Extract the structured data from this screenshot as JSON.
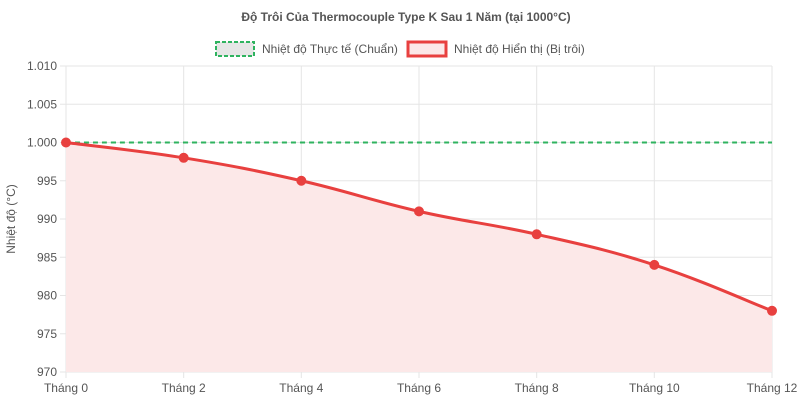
{
  "chart_data": {
    "type": "line",
    "title": "Độ Trôi Của Thermocouple Type K Sau 1 Năm (tại 1000°C)",
    "xlabel": "",
    "ylabel": "Nhiệt độ (°C)",
    "categories": [
      "Tháng 0",
      "Tháng 2",
      "Tháng 4",
      "Tháng 6",
      "Tháng 8",
      "Tháng 10",
      "Tháng 12"
    ],
    "ylim": [
      970,
      1010
    ],
    "yticks": [
      "1.010",
      "1.005",
      "1.000",
      "995",
      "990",
      "985",
      "980",
      "975",
      "970"
    ],
    "ytick_values": [
      1010,
      1005,
      1000,
      995,
      990,
      985,
      980,
      975,
      970
    ],
    "grid": true,
    "legend_position": "top",
    "series": [
      {
        "name": "Nhiệt độ Thực tế (Chuẩn)",
        "values": [
          1000,
          1000,
          1000,
          1000,
          1000,
          1000,
          1000
        ],
        "color": "#2fb35f",
        "fill": "#e6e6e6",
        "style": "dashed"
      },
      {
        "name": "Nhiệt độ Hiển thị (Bị trôi)",
        "values": [
          1000,
          998,
          995,
          991,
          988,
          984,
          978
        ],
        "color": "#e8403f",
        "fill": "#fce8e8",
        "style": "solid-area"
      }
    ]
  }
}
